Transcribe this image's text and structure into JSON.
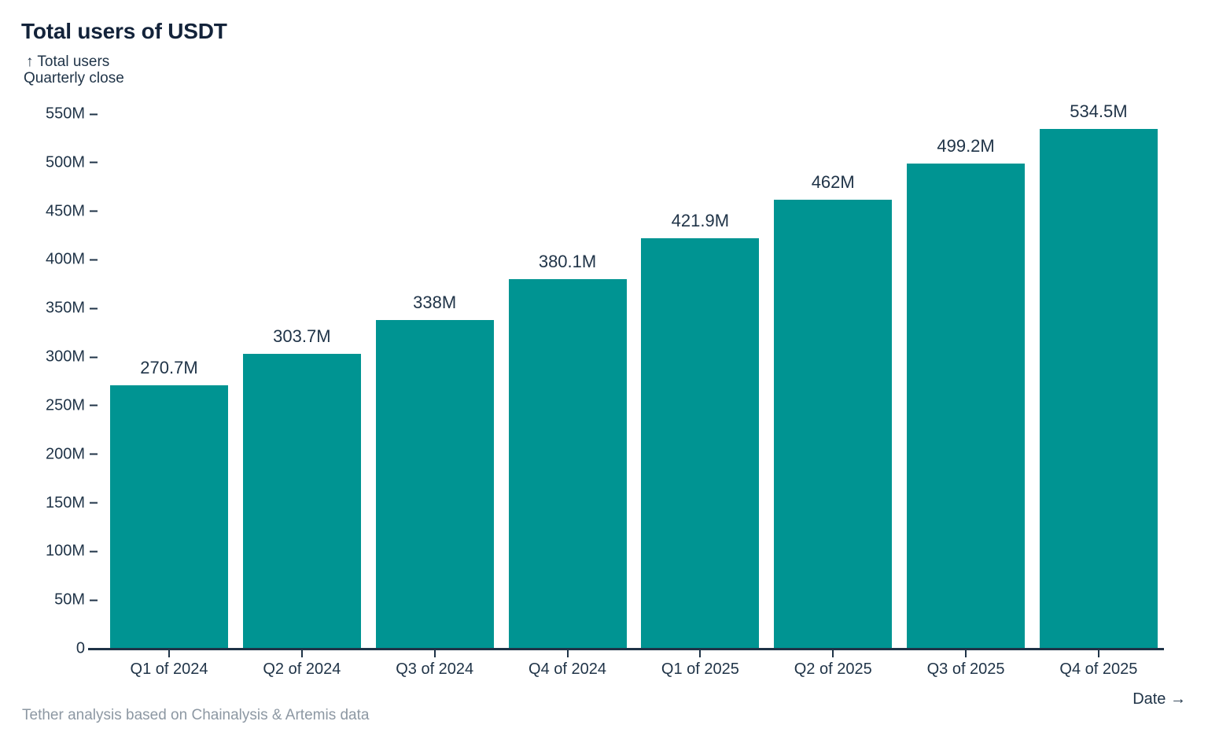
{
  "header": {
    "title": "Total users of USDT"
  },
  "axes": {
    "y_title_line1": "↑ Total users",
    "y_title_line2": "Quarterly close",
    "x_title": "Date →"
  },
  "footer": {
    "source_note": "Tether analysis based on Chainalysis & Artemis data"
  },
  "colors": {
    "bar": "#009492",
    "text": "#1f3347",
    "title": "#13233a",
    "footer": "#8d98a3"
  },
  "chart_data": {
    "type": "bar",
    "title": "Total users of USDT",
    "xlabel": "Date",
    "ylabel": "Total users, quarterly close",
    "categories": [
      "Q1 of 2024",
      "Q2 of 2024",
      "Q3 of 2024",
      "Q4 of 2024",
      "Q1 of 2025",
      "Q2 of 2025",
      "Q3 of 2025",
      "Q4 of 2025"
    ],
    "values": [
      270.7,
      303.7,
      338,
      380.1,
      421.9,
      462,
      499.2,
      534.5
    ],
    "value_labels": [
      "270.7M",
      "303.7M",
      "338M",
      "380.1M",
      "421.9M",
      "462M",
      "499.2M",
      "534.5M"
    ],
    "unit": "M",
    "ylim": [
      0,
      550
    ],
    "y_tick_step": 50,
    "y_tick_labels": [
      "0",
      "50M",
      "100M",
      "150M",
      "200M",
      "250M",
      "300M",
      "350M",
      "400M",
      "450M",
      "500M",
      "550M"
    ],
    "grid": false,
    "legend": "none"
  }
}
